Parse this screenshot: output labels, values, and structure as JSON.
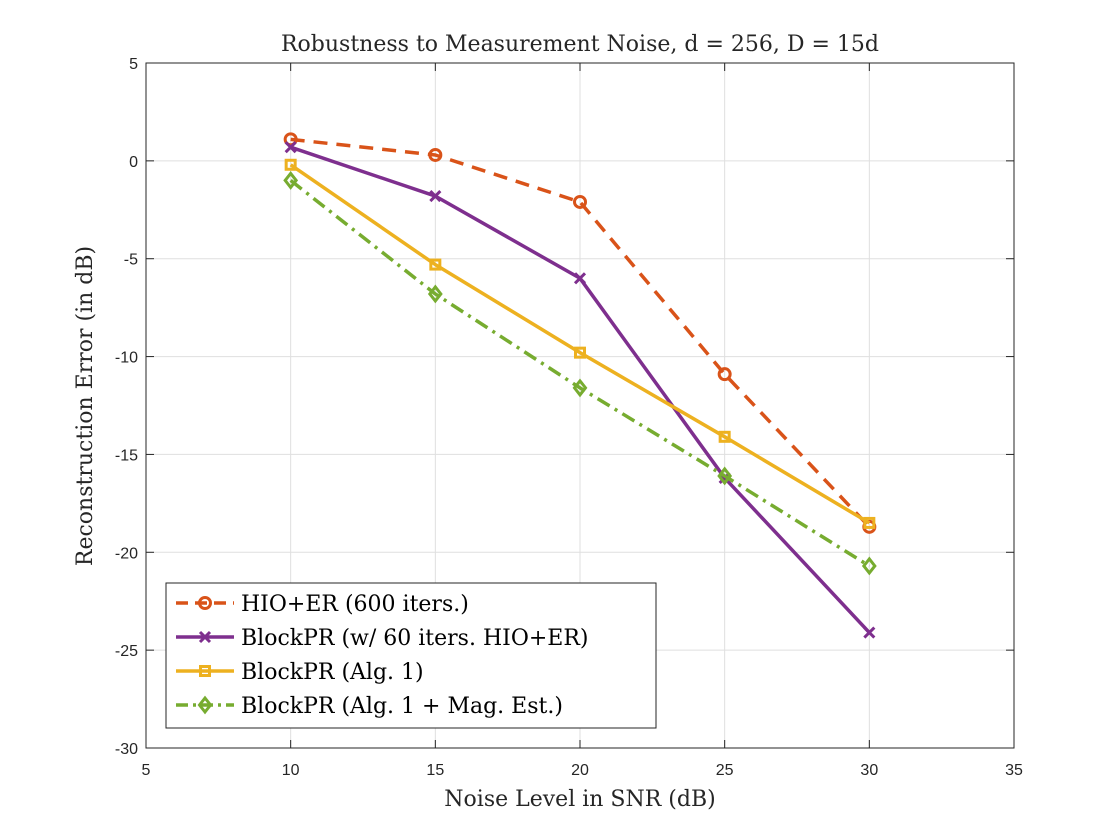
{
  "chart_data": {
    "type": "line",
    "title": "Robustness to Measurement Noise, d = 256, D = 15d",
    "xlabel": "Noise Level in SNR (dB)",
    "ylabel": "Reconstruction Error (in dB)",
    "xlim": [
      5,
      35
    ],
    "ylim": [
      -30,
      5
    ],
    "xticks": [
      5,
      10,
      15,
      20,
      25,
      30,
      35
    ],
    "yticks": [
      5,
      0,
      -5,
      -10,
      -15,
      -20,
      -25,
      -30
    ],
    "grid": true,
    "legend_position": "bottom-left",
    "x": [
      10,
      15,
      20,
      25,
      30
    ],
    "series": [
      {
        "name": "HIO+ER (600 iters.)",
        "values": [
          1.1,
          0.3,
          -2.1,
          -10.9,
          -18.7
        ],
        "color": "#D95319",
        "dash": "dashed",
        "marker": "circle"
      },
      {
        "name": "BlockPR (w/ 60 iters. HIO+ER)",
        "values": [
          0.7,
          -1.8,
          -6.0,
          -16.2,
          -24.1
        ],
        "color": "#7E2F8E",
        "dash": "solid",
        "marker": "x"
      },
      {
        "name": "BlockPR (Alg. 1)",
        "values": [
          -0.2,
          -5.3,
          -9.8,
          -14.1,
          -18.5
        ],
        "color": "#EDB120",
        "dash": "solid",
        "marker": "square"
      },
      {
        "name": "BlockPR (Alg. 1 + Mag. Est.)",
        "values": [
          -1.0,
          -6.8,
          -11.6,
          -16.1,
          -20.7
        ],
        "color": "#77AC30",
        "dash": "dashdot",
        "marker": "diamond"
      }
    ]
  }
}
